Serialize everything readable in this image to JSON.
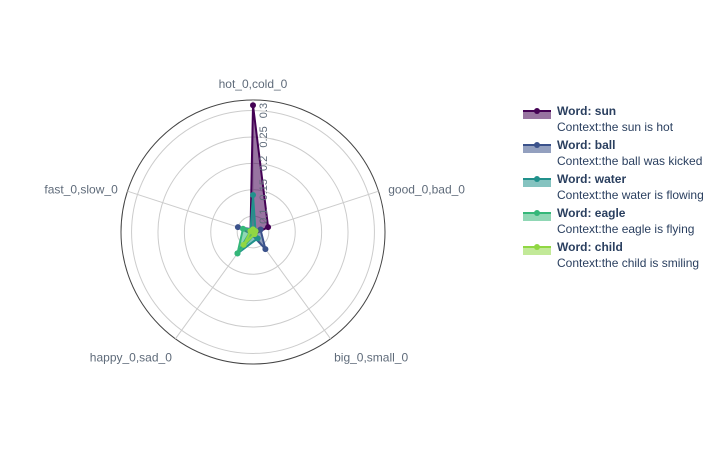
{
  "chart_data": {
    "type": "radar",
    "axes": [
      "hot_0,cold_0",
      "good_0,bad_0",
      "big_0,small_0",
      "happy_0,sad_0",
      "fast_0,slow_0"
    ],
    "radial_ticks": [
      "0.1",
      "0.15",
      "0.2",
      "0.25",
      "0.3"
    ],
    "radial_range": [
      0.07,
      0.32
    ],
    "grid": true,
    "legend_position": "right",
    "series": [
      {
        "name": "Word: sun",
        "context": "Context:the sun is hot",
        "color": "#440154",
        "values": [
          0.31,
          0.1,
          0.075,
          0.075,
          0.075
        ]
      },
      {
        "name": "Word: ball",
        "context": "Context:the ball was kicked",
        "color": "#3b528b",
        "values": [
          0.075,
          0.085,
          0.11,
          0.075,
          0.1
        ]
      },
      {
        "name": "Word: water",
        "context": "Context:the water is flowing",
        "color": "#21918c",
        "values": [
          0.14,
          0.075,
          0.085,
          0.12,
          0.075
        ]
      },
      {
        "name": "Word: eagle",
        "context": "Context:the eagle is flying",
        "color": "#35b779",
        "values": [
          0.075,
          0.075,
          0.075,
          0.12,
          0.09
        ]
      },
      {
        "name": "Word: child",
        "context": "Context:the child is smiling",
        "color": "#90d743",
        "values": [
          0.075,
          0.075,
          0.075,
          0.1,
          0.075
        ]
      }
    ]
  }
}
